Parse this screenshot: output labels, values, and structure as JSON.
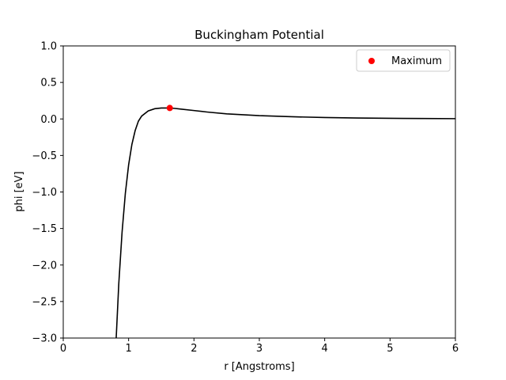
{
  "chart_data": {
    "type": "line",
    "title": "Buckingham Potential",
    "xlabel": "r [Angstroms]",
    "ylabel": "phi [eV]",
    "xlim": [
      0,
      6
    ],
    "ylim": [
      -3.0,
      1.0
    ],
    "xticks": [
      0,
      1,
      2,
      3,
      4,
      5,
      6
    ],
    "xtick_labels": [
      "0",
      "1",
      "2",
      "3",
      "4",
      "5",
      "6"
    ],
    "yticks": [
      1.0,
      0.5,
      0.0,
      -0.5,
      -1.0,
      -1.5,
      -2.0,
      -2.5,
      -3.0
    ],
    "ytick_labels": [
      "1.0",
      "0.5",
      "0.0",
      "−0.5",
      "−1.0",
      "−1.5",
      "−2.0",
      "−2.5",
      "−3.0"
    ],
    "grid": false,
    "legend_position": "top-right",
    "series": [
      {
        "color": "#000000",
        "x": [
          0.81,
          0.85,
          0.9,
          0.95,
          1.0,
          1.05,
          1.1,
          1.15,
          1.2,
          1.3,
          1.4,
          1.5,
          1.6,
          1.7,
          1.8,
          2.0,
          2.2,
          2.5,
          3.0,
          3.5,
          4.0,
          4.5,
          5.0,
          5.5,
          6.0
        ],
        "y": [
          -3.0,
          -2.25,
          -1.55,
          -1.02,
          -0.63,
          -0.35,
          -0.16,
          -0.03,
          0.04,
          0.11,
          0.14,
          0.15,
          0.15,
          0.145,
          0.135,
          0.115,
          0.095,
          0.07,
          0.045,
          0.03,
          0.02,
          0.013,
          0.009,
          0.006,
          0.004
        ]
      }
    ],
    "points": [
      {
        "name": "Maximum",
        "x": 1.63,
        "y": 0.15,
        "color": "#ff0000"
      }
    ]
  }
}
